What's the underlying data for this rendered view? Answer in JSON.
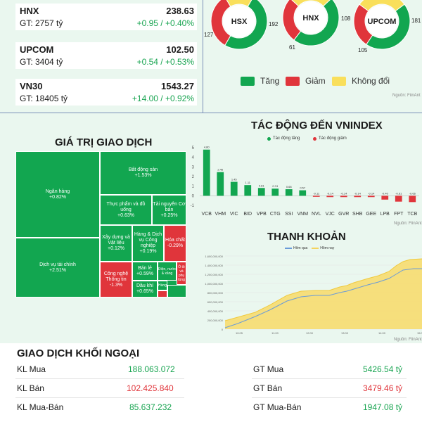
{
  "indices": [
    {
      "name": "HNX",
      "value": "238.63",
      "gt": "GT: 2757 tỷ",
      "change": "+0.95 / +0.40%"
    },
    {
      "name": "UPCOM",
      "value": "102.50",
      "gt": "GT: 3404 tỷ",
      "change": "+0.54 / +0.53%"
    },
    {
      "name": "VN30",
      "value": "1543.27",
      "gt": "GT: 18405 tỷ",
      "change": "+14.00 / +0.92%"
    }
  ],
  "breadth": {
    "donuts": [
      {
        "name": "HSX",
        "up": 192,
        "down": 127,
        "same": 65,
        "labels": [
          "127",
          "192"
        ]
      },
      {
        "name": "HNX",
        "up": 108,
        "down": 61,
        "same": 60,
        "labels": [
          "61",
          "108"
        ]
      },
      {
        "name": "UPCOM",
        "up": 181,
        "down": 105,
        "same": 120,
        "labels": [
          "105",
          "181"
        ]
      }
    ],
    "legend": [
      "Tăng",
      "Giảm",
      "Không đổi"
    ],
    "source": "Nguồn: FiinAnt"
  },
  "colors": {
    "up": "#12a650",
    "down": "#e0353b",
    "same": "#f9df5b"
  },
  "treemap": {
    "title": "GIÁ TRỊ GIAO DỊCH",
    "cells": [
      {
        "label": "Ngân hàng",
        "value": "+0.82%"
      },
      {
        "label": "Dịch vụ tài chính",
        "value": "+2.51%"
      },
      {
        "label": "Bất động sản",
        "value": "+1.53%"
      },
      {
        "label": "Thực phẩm và đồ uống",
        "value": "+0.63%"
      },
      {
        "label": "Tài nguyên Cơ bản",
        "value": "+0.25%"
      },
      {
        "label": "Xây dựng và Vật liệu",
        "value": "+0.12%"
      },
      {
        "label": "Hàng & Dịch vụ Công nghiệp",
        "value": "+0.19%"
      },
      {
        "label": "Hóa chất",
        "value": "-0.29%"
      },
      {
        "label": "Công nghệ Thông tin",
        "value": "-1.3%"
      },
      {
        "label": "Bán lẻ",
        "value": "+0.59%"
      },
      {
        "label": "Điện, nước & xăng",
        "value": ""
      },
      {
        "label": "Ô tô và phụ tùng",
        "value": ""
      },
      {
        "label": "Dầu khí",
        "value": "+0.65%"
      },
      {
        "label": "Hàng",
        "value": ""
      }
    ]
  },
  "impact": {
    "title": "TÁC ĐỘNG ĐẾN VNINDEX",
    "legend": [
      "Tác động tăng",
      "Tác động giảm"
    ],
    "source": "Nguồn: FiinAnt"
  },
  "liquidity": {
    "title": "THANH KHOẢN",
    "legend": [
      "Hôm qua",
      "Hôm nay"
    ],
    "source": "Nguồn: FiinAnt"
  },
  "chart_data": [
    {
      "type": "bar",
      "title": "TÁC ĐỘNG ĐẾN VNINDEX",
      "categories": [
        "VCB",
        "VHM",
        "VIC",
        "BID",
        "VPB",
        "CTG",
        "SSI",
        "VNM",
        "NVL",
        "VJC",
        "GVR",
        "SHB",
        "GEE",
        "LPB",
        "FPT",
        "TCB"
      ],
      "values": [
        4.8,
        2.46,
        1.45,
        1.11,
        0.81,
        0.74,
        0.68,
        0.57,
        -0.11,
        -0.14,
        -0.14,
        -0.14,
        -0.14,
        -0.4,
        -0.61,
        -0.66
      ],
      "value_labels": [
        "4.80",
        "2.46",
        "1.45",
        "1.11",
        "0.81",
        "0.74",
        "0.68",
        "0.57",
        "-0.11",
        "-0.14",
        "-0.14",
        "-0.14",
        "-0.14",
        "-0.40",
        "-0.61",
        "-0.66"
      ],
      "yticks": [
        5,
        4,
        3,
        2,
        1,
        0,
        -1
      ],
      "ylim": [
        -1,
        5
      ]
    },
    {
      "type": "area",
      "title": "THANH KHOẢN",
      "series": [
        {
          "name": "Hôm qua"
        },
        {
          "name": "Hôm nay"
        }
      ],
      "x_ticks": [
        "10:05",
        "11:00",
        "12:00",
        "13:00",
        "14:00",
        "15:00"
      ],
      "y_ticks": [
        "1,600,000,000",
        "1,400,000,000",
        "1,200,000,000",
        "1,000,000,000",
        "800,000,000",
        "600,000,000",
        "400,000,000",
        "200,000,000",
        "0"
      ]
    }
  ],
  "foreign": {
    "title": "GIAO DỊCH KHỐI NGOẠI",
    "left": [
      {
        "label": "KL Mua",
        "value": "188.063.072",
        "color": "#1aa552"
      },
      {
        "label": "KL Bán",
        "value": "102.425.840",
        "color": "#e0353b"
      },
      {
        "label": "KL Mua-Bán",
        "value": "85.637.232",
        "color": "#1aa552"
      }
    ],
    "right": [
      {
        "label": "GT Mua",
        "value": "5426.54 tỷ",
        "color": "#1aa552"
      },
      {
        "label": "GT Bán",
        "value": "3479.46 tỷ",
        "color": "#e0353b"
      },
      {
        "label": "GT Mua-Bán",
        "value": "1947.08 tỷ",
        "color": "#1aa552"
      }
    ]
  }
}
